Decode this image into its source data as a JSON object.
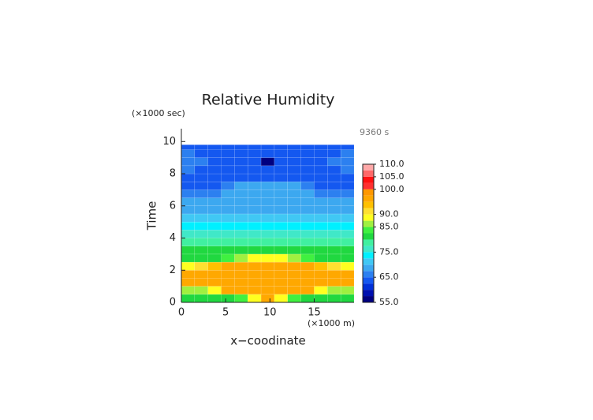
{
  "chart_data": {
    "type": "contour",
    "title": "Relative Humidity",
    "y_unit": "(×1000 sec)",
    "x_unit": "(×1000 m)",
    "annotation": "9360 s",
    "xlabel": "x−coodinate",
    "ylabel": "Time",
    "xlim": [
      0,
      19.5
    ],
    "ylim": [
      0,
      10.8
    ],
    "xticks": [
      0,
      5,
      10,
      15
    ],
    "yticks": [
      0,
      2,
      4,
      6,
      8,
      10
    ],
    "x_edges": [
      0,
      1.5,
      3,
      4.5,
      6,
      7.5,
      9,
      10.5,
      12,
      13.5,
      15,
      16.5,
      18,
      19.5
    ],
    "y_edges": [
      0,
      0.5,
      1,
      1.5,
      2,
      2.5,
      3,
      3.5,
      4,
      4.5,
      5,
      5.5,
      6,
      6.5,
      7,
      7.5,
      8,
      8.5,
      9,
      9.5,
      9.8
    ],
    "z": [
      [
        82,
        82,
        82,
        82,
        83,
        88,
        96,
        88,
        83,
        82,
        82,
        82,
        82
      ],
      [
        86,
        86,
        88,
        96,
        96,
        96,
        96,
        96,
        96,
        96,
        88,
        86,
        86
      ],
      [
        96,
        96,
        96,
        96,
        96,
        96,
        96,
        96,
        96,
        96,
        96,
        96,
        96
      ],
      [
        96,
        96,
        96,
        96,
        96,
        96,
        96,
        96,
        96,
        96,
        96,
        96,
        96
      ],
      [
        89,
        90,
        93,
        96,
        96,
        96,
        96,
        96,
        96,
        96,
        93,
        90,
        89
      ],
      [
        82,
        82,
        82,
        84,
        86,
        88,
        88,
        88,
        86,
        84,
        82,
        82,
        82
      ],
      [
        81,
        81,
        81,
        81,
        81,
        81,
        81,
        81,
        81,
        81,
        81,
        81,
        81
      ],
      [
        78,
        78,
        78,
        78,
        78,
        78,
        78,
        78,
        78,
        78,
        78,
        78,
        78
      ],
      [
        76,
        76,
        76,
        76,
        76,
        76,
        76,
        76,
        76,
        76,
        76,
        76,
        76
      ],
      [
        74,
        74,
        74,
        74,
        74,
        74,
        74,
        74,
        74,
        74,
        74,
        74,
        74
      ],
      [
        70,
        70,
        70,
        70,
        70,
        70,
        70,
        70,
        70,
        70,
        70,
        70,
        70
      ],
      [
        69,
        69,
        69,
        69,
        69,
        69,
        69,
        69,
        69,
        69,
        69,
        69,
        69
      ],
      [
        68,
        68,
        68,
        68,
        68,
        68,
        68,
        68,
        68,
        68,
        68,
        68,
        68
      ],
      [
        65,
        65,
        66,
        68,
        68,
        68,
        68,
        68,
        68,
        68,
        66,
        65,
        65
      ],
      [
        64,
        64,
        64,
        66,
        68,
        68,
        68,
        68,
        68,
        66,
        64,
        64,
        64
      ],
      [
        64,
        64,
        64,
        64,
        64,
        64,
        64,
        64,
        64,
        64,
        64,
        64,
        64
      ],
      [
        67,
        64,
        64,
        64,
        64,
        64,
        64,
        64,
        64,
        64,
        64,
        64,
        67
      ],
      [
        67,
        66,
        64,
        64,
        64,
        64,
        57,
        64,
        64,
        64,
        64,
        66,
        67
      ],
      [
        67,
        64,
        64,
        64,
        64,
        64,
        64,
        64,
        64,
        64,
        64,
        64,
        67
      ],
      [
        64,
        64,
        64,
        64,
        64,
        64,
        64,
        64,
        64,
        64,
        64,
        64,
        64
      ]
    ],
    "levels": [
      55,
      57.5,
      60,
      62.5,
      65,
      67.5,
      70,
      72.5,
      75,
      77.5,
      80,
      82.5,
      85,
      87.5,
      90,
      92.5,
      95,
      97.5,
      100,
      102.5,
      105,
      107.5,
      110
    ],
    "level_colors": [
      "#000080",
      "#0010b0",
      "#0030d8",
      "#1458f0",
      "#2c80f0",
      "#3ca8f0",
      "#40c8f4",
      "#00f0ff",
      "#40e8c8",
      "#40f0a0",
      "#20d840",
      "#40f040",
      "#a0f040",
      "#ffff20",
      "#ffe030",
      "#ffc000",
      "#ffa800",
      "#ff9800",
      "#ff3030",
      "#ff1010",
      "#ff6868",
      "#ffa8a8"
    ],
    "colorbar_ticks": [
      {
        "value": 55,
        "label": "55.0"
      },
      {
        "value": 65,
        "label": "65.0"
      },
      {
        "value": 75,
        "label": "75.0"
      },
      {
        "value": 85,
        "label": "85.0"
      },
      {
        "value": 90,
        "label": "90.0"
      },
      {
        "value": 100,
        "label": "100.0"
      },
      {
        "value": 105,
        "label": "105.0"
      },
      {
        "value": 110,
        "label": "110.0"
      }
    ]
  }
}
